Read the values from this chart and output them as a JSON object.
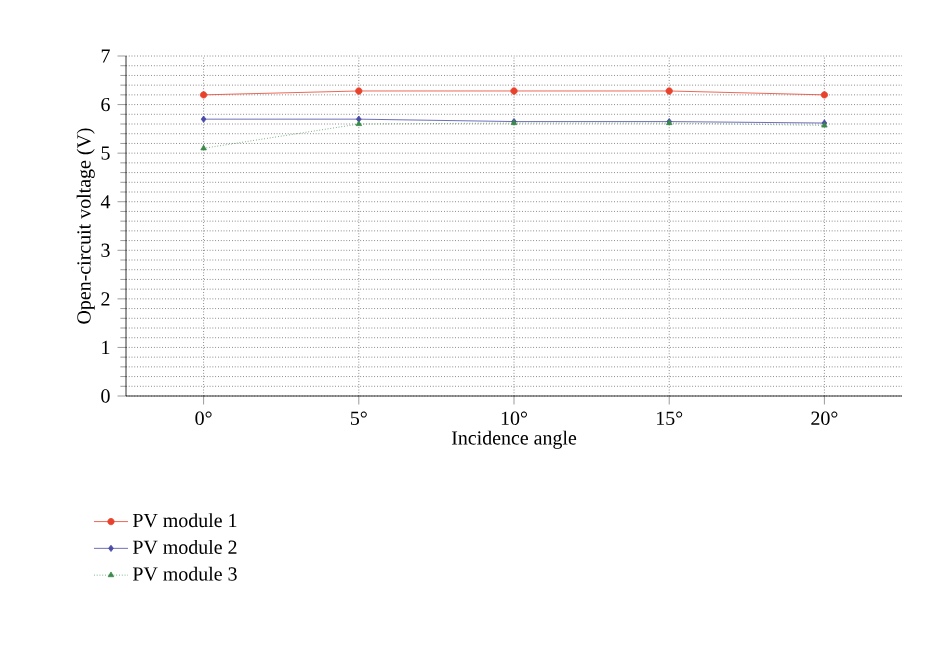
{
  "chart_data": {
    "type": "line",
    "xlabel": "Incidence angle",
    "ylabel": "Open-circuit voltage (V)",
    "categories": [
      "0°",
      "5°",
      "10°",
      "15°",
      "20°"
    ],
    "ylim": [
      0,
      7
    ],
    "yticks": [
      0,
      1,
      2,
      3,
      4,
      5,
      6,
      7
    ],
    "grid": true,
    "legend": "bottom left",
    "series": [
      {
        "name": "PV module 1",
        "color": "#e8412c",
        "marker": "circle",
        "line_style": "solid",
        "values": [
          6.2,
          6.28,
          6.28,
          6.28,
          6.2
        ]
      },
      {
        "name": "PV module 2",
        "color": "#4a4aa8",
        "marker": "diamond",
        "line_style": "solid",
        "values": [
          5.7,
          5.7,
          5.65,
          5.65,
          5.62
        ]
      },
      {
        "name": "PV module 3",
        "color": "#3a8a4a",
        "marker": "triangle",
        "line_style": "dotted",
        "values": [
          5.1,
          5.6,
          5.62,
          5.62,
          5.57
        ]
      }
    ]
  }
}
